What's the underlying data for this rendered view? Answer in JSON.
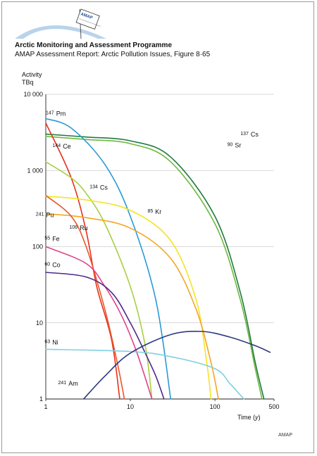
{
  "header": {
    "organization": "Arctic Monitoring and Assessment Programme",
    "report": "AMAP Assessment Report: Arctic Pollution Issues, Figure 8·65",
    "logo_text": "AMAP",
    "logo_caption": "Arctic Monitoring and Assessment Programme",
    "footer": "AMAP"
  },
  "colors": {
    "grid": "#cccccc",
    "logo_arc": "#b9d3ea"
  },
  "chart_data": {
    "type": "line",
    "title": "",
    "ylabel": "Activity TBq",
    "ylabel_lines": [
      "Activity",
      "TBq"
    ],
    "xlabel": "Time (y)",
    "xlabel_parts": {
      "pre": "Time (",
      "var": "y",
      "post": ")"
    },
    "xscale": "log",
    "yscale": "log",
    "xlim": [
      1,
      500
    ],
    "ylim": [
      1,
      10000
    ],
    "x_ticks": [
      1,
      10,
      100,
      500
    ],
    "x_tick_labels": [
      "1",
      "10",
      "100",
      "500"
    ],
    "y_ticks": [
      1,
      10,
      100,
      1000,
      10000
    ],
    "y_tick_labels": [
      "1",
      "10",
      "100",
      "1 000",
      "10 000"
    ],
    "grid": "horizontal",
    "series": [
      {
        "name": "137 Cs",
        "mass": "137",
        "el": "Cs",
        "color": "#1f7a40",
        "points": [
          [
            1,
            3000
          ],
          [
            3,
            2750
          ],
          [
            10,
            2450
          ],
          [
            30,
            1500
          ],
          [
            100,
            250
          ],
          [
            200,
            25
          ],
          [
            300,
            3
          ],
          [
            380,
            1
          ]
        ],
        "label_at": [
          200,
          2800
        ]
      },
      {
        "name": "90 Sr",
        "mass": "90",
        "el": "Sr",
        "color": "#6fb840",
        "points": [
          [
            1,
            2800
          ],
          [
            3,
            2550
          ],
          [
            10,
            2250
          ],
          [
            30,
            1300
          ],
          [
            100,
            200
          ],
          [
            200,
            20
          ],
          [
            300,
            2.5
          ],
          [
            360,
            1
          ]
        ],
        "label_at": [
          140,
          2000
        ]
      },
      {
        "name": "147 Pm",
        "mass": "147",
        "el": "Pm",
        "color": "#2a9ad6",
        "points": [
          [
            1,
            4800
          ],
          [
            2,
            3600
          ],
          [
            5,
            1200
          ],
          [
            10,
            250
          ],
          [
            20,
            20
          ],
          [
            30,
            1
          ]
        ],
        "label_at": [
          1,
          5200
        ]
      },
      {
        "name": "144 Ce",
        "mass": "144",
        "el": "Ce",
        "color": "#e8301c",
        "points": [
          [
            1,
            4200
          ],
          [
            2,
            800
          ],
          [
            3,
            160
          ],
          [
            4,
            30
          ],
          [
            6,
            6
          ],
          [
            7.5,
            1
          ]
        ],
        "label_at": [
          1.2,
          1950
        ]
      },
      {
        "name": "134 Cs",
        "mass": "134",
        "el": "Cs",
        "color": "#a8cf45",
        "points": [
          [
            1,
            1300
          ],
          [
            2,
            800
          ],
          [
            3,
            500
          ],
          [
            5,
            200
          ],
          [
            10,
            30
          ],
          [
            15,
            5
          ],
          [
            18,
            1
          ]
        ],
        "label_at": [
          3.3,
          560
        ]
      },
      {
        "name": "85 Kr",
        "mass": "85",
        "el": "Kr",
        "color": "#f5e324",
        "points": [
          [
            1,
            460
          ],
          [
            3,
            410
          ],
          [
            10,
            300
          ],
          [
            30,
            120
          ],
          [
            60,
            20
          ],
          [
            80,
            3
          ],
          [
            90,
            1
          ]
        ],
        "label_at": [
          16,
          270
        ]
      },
      {
        "name": "241 Pu",
        "mass": "241",
        "el": "Pu",
        "color": "#f5a623",
        "points": [
          [
            1,
            270
          ],
          [
            3,
            240
          ],
          [
            10,
            175
          ],
          [
            30,
            70
          ],
          [
            60,
            15
          ],
          [
            90,
            3
          ],
          [
            110,
            1
          ]
        ],
        "label_at": [
          0.76,
          245
        ]
      },
      {
        "name": "106 Ru",
        "mass": "106",
        "el": "Ru",
        "color": "#e8582a",
        "points": [
          [
            1,
            470
          ],
          [
            2,
            250
          ],
          [
            3,
            100
          ],
          [
            5,
            15
          ],
          [
            7,
            3
          ],
          [
            8.5,
            1
          ]
        ],
        "label_at": [
          1.9,
          165
        ]
      },
      {
        "name": "55 Fe",
        "mass": "55",
        "el": "Fe",
        "color": "#e0418c",
        "points": [
          [
            1,
            100
          ],
          [
            3,
            60
          ],
          [
            5,
            30
          ],
          [
            8,
            12
          ],
          [
            12,
            4
          ],
          [
            18,
            1
          ]
        ],
        "label_at": [
          0.97,
          118
        ]
      },
      {
        "name": "60 Co",
        "mass": "60",
        "el": "Co",
        "color": "#4e2a8c",
        "points": [
          [
            1,
            46
          ],
          [
            3,
            40
          ],
          [
            6,
            25
          ],
          [
            10,
            10
          ],
          [
            15,
            4
          ],
          [
            20,
            2
          ],
          [
            25,
            1
          ]
        ],
        "label_at": [
          0.97,
          54
        ]
      },
      {
        "name": "63 Ni",
        "mass": "63",
        "el": "Ni",
        "color": "#7fd0e2",
        "points": [
          [
            1,
            4.5
          ],
          [
            10,
            4.2
          ],
          [
            30,
            3.6
          ],
          [
            100,
            2.5
          ],
          [
            150,
            1.6
          ],
          [
            220,
            1
          ]
        ],
        "label_at": [
          0.97,
          5.2
        ]
      },
      {
        "name": "241 Am",
        "mass": "241",
        "el": "Am",
        "color": "#2c3a80",
        "points": [
          [
            2.8,
            1
          ],
          [
            5,
            2
          ],
          [
            10,
            4
          ],
          [
            30,
            7
          ],
          [
            70,
            7.7
          ],
          [
            150,
            6.5
          ],
          [
            300,
            5
          ],
          [
            450,
            4.1
          ]
        ],
        "label_at": [
          1.4,
          1.5
        ]
      }
    ]
  }
}
